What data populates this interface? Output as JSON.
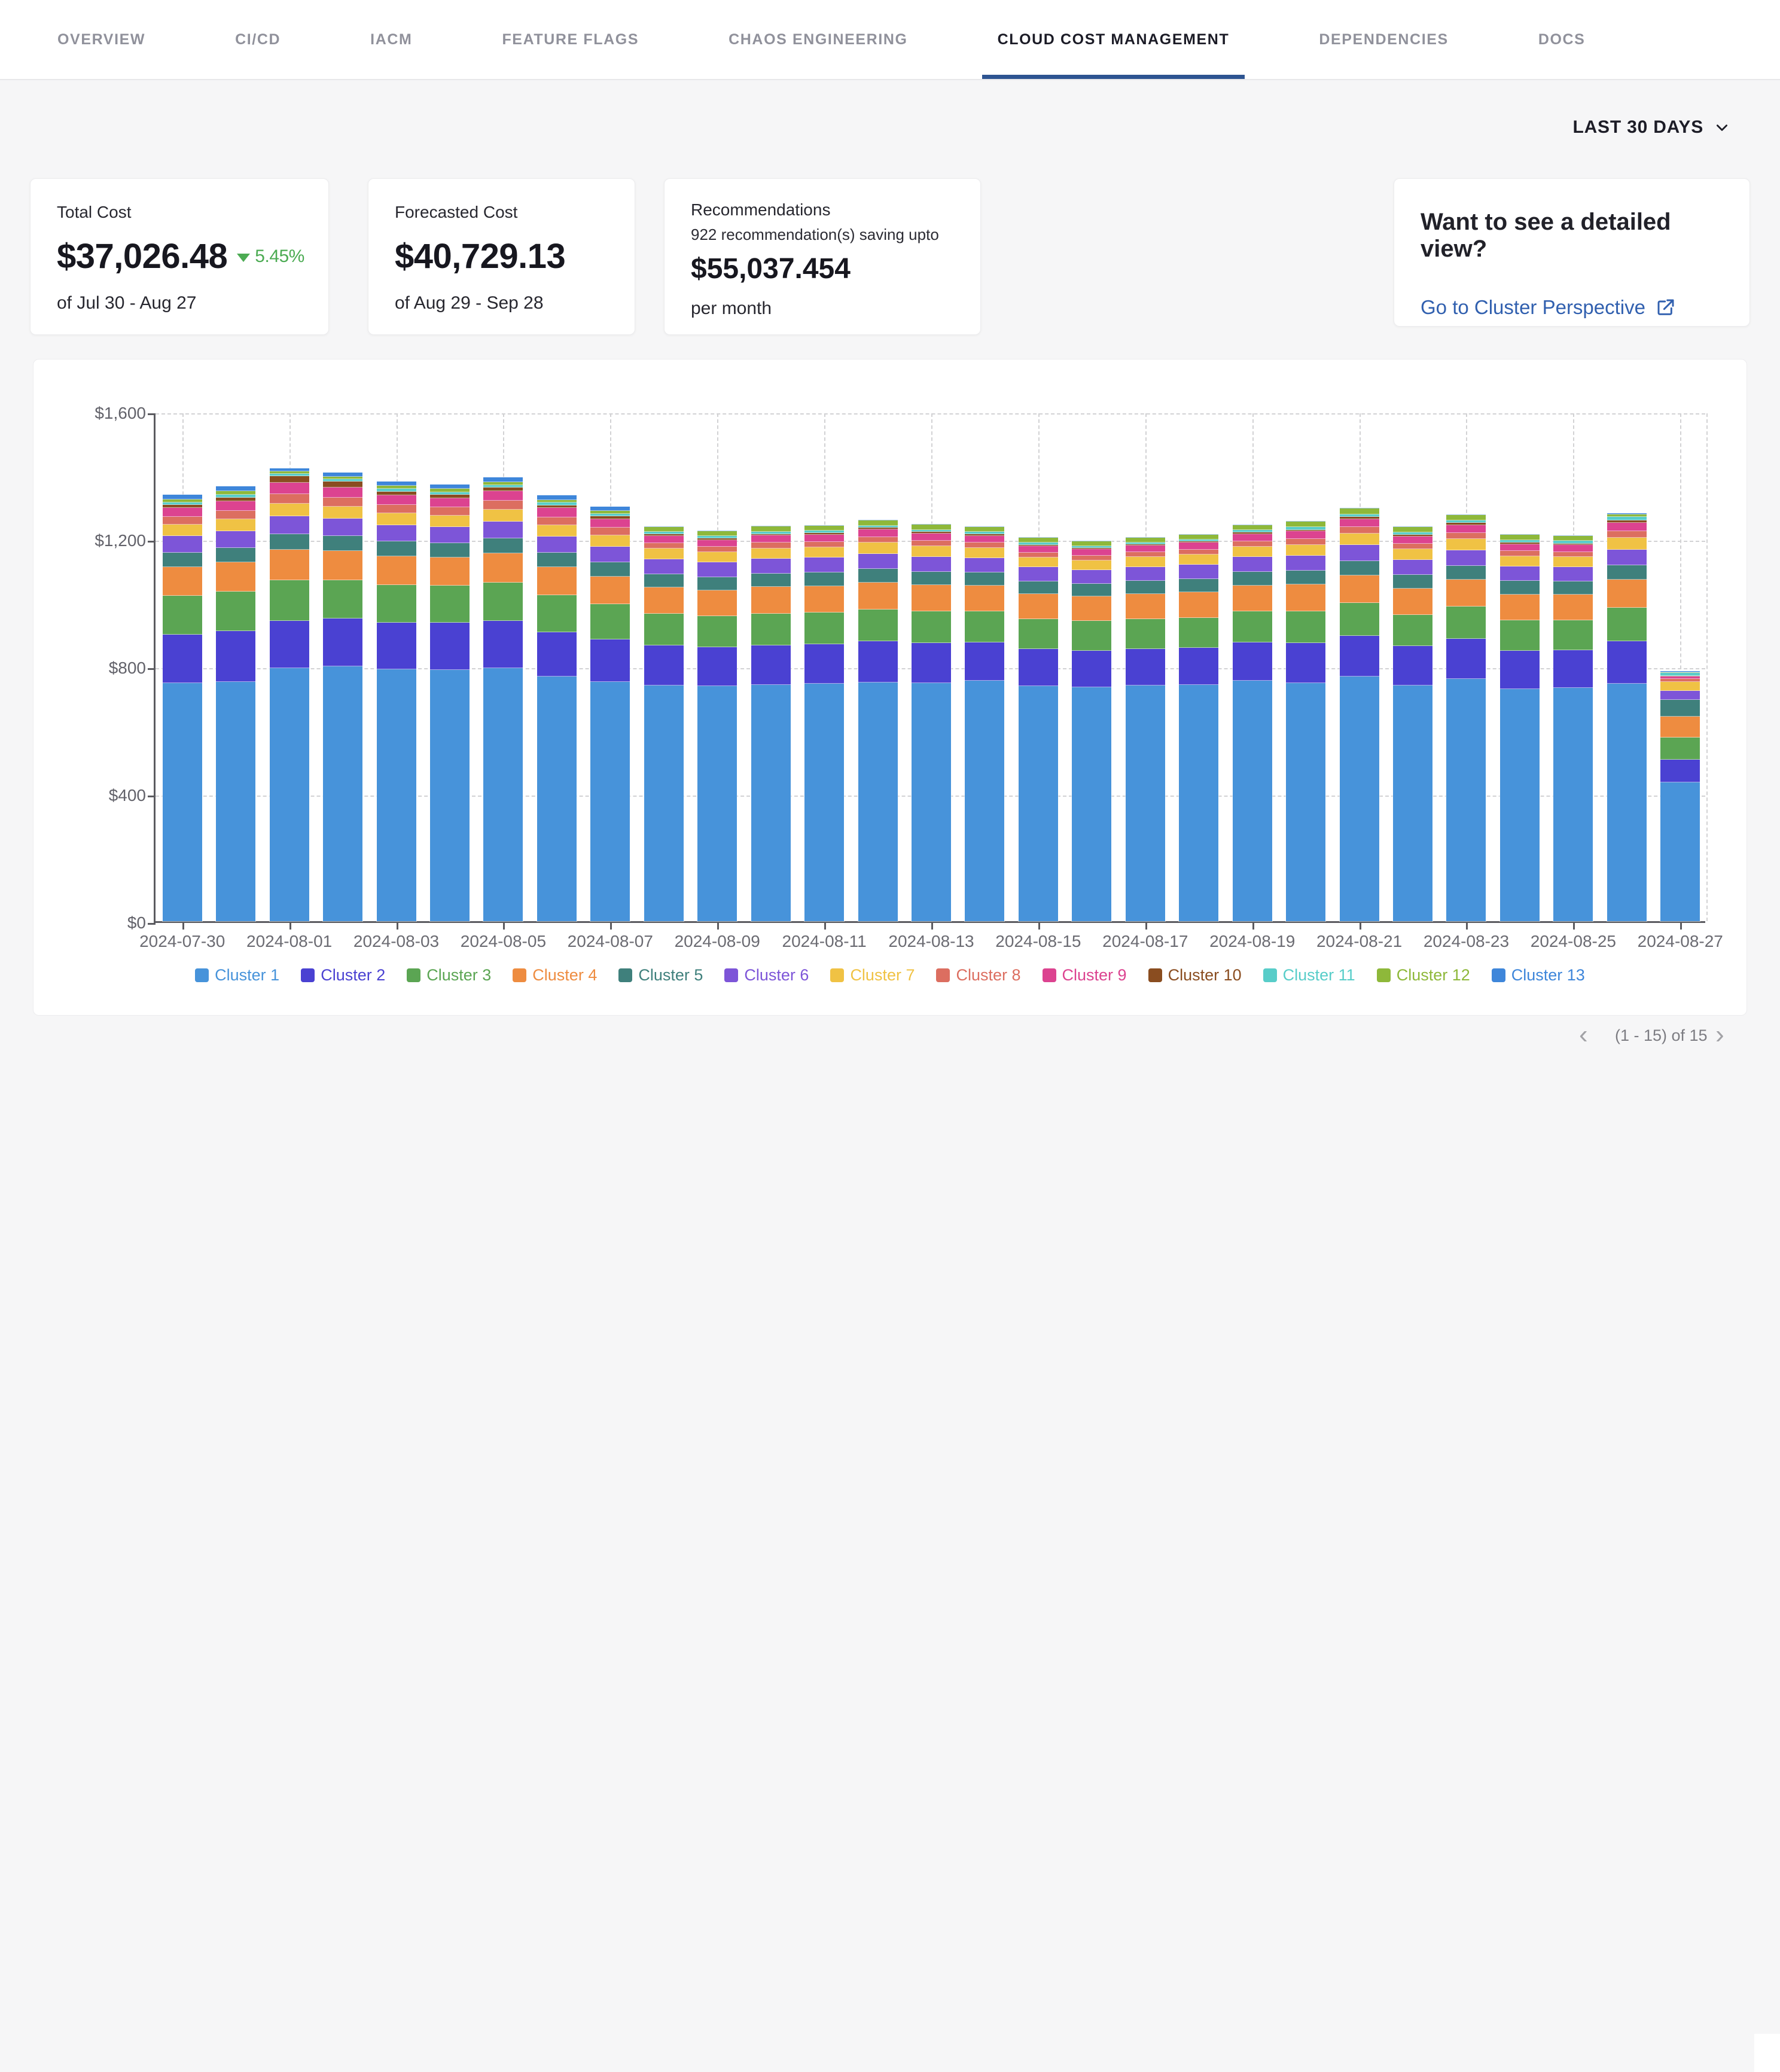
{
  "nav": {
    "tabs": [
      {
        "label": "OVERVIEW",
        "active": false
      },
      {
        "label": "CI/CD",
        "active": false
      },
      {
        "label": "IACM",
        "active": false
      },
      {
        "label": "FEATURE FLAGS",
        "active": false
      },
      {
        "label": "CHAOS ENGINEERING",
        "active": false
      },
      {
        "label": "CLOUD COST MANAGEMENT",
        "active": true
      },
      {
        "label": "DEPENDENCIES",
        "active": false
      },
      {
        "label": "DOCS",
        "active": false
      }
    ]
  },
  "toolbar": {
    "time_range": "LAST 30 DAYS"
  },
  "cards": {
    "total_cost": {
      "label": "Total Cost",
      "value": "$37,026.48",
      "delta": "5.45%",
      "delta_direction": "down",
      "delta_color": "#4cab53",
      "period": "of Jul 30 - Aug 27"
    },
    "forecasted_cost": {
      "label": "Forecasted Cost",
      "value": "$40,729.13",
      "period": "of Aug 29 - Sep 28"
    },
    "recommendations": {
      "label": "Recommendations",
      "summary": "922 recommendation(s) saving upto",
      "value": "$55,037.454",
      "suffix": "per month"
    },
    "detail_view": {
      "title": "Want to see a detailed view?",
      "link_label": "Go to Cluster Perspective",
      "link_color": "#3160af"
    }
  },
  "chart_data": {
    "type": "bar",
    "stacked": true,
    "title": "",
    "xlabel": "",
    "ylabel": "",
    "ylim": [
      0,
      1600
    ],
    "grid": "dashed",
    "legend_position": "bottom",
    "y_ticks": [
      {
        "value": 0,
        "label": "$0"
      },
      {
        "value": 400,
        "label": "$400"
      },
      {
        "value": 800,
        "label": "$800"
      },
      {
        "value": 1200,
        "label": "$1,200"
      },
      {
        "value": 1600,
        "label": "$1,600"
      }
    ],
    "x_label_every": 2,
    "categories": [
      "2024-07-30",
      "2024-07-31",
      "2024-08-01",
      "2024-08-02",
      "2024-08-03",
      "2024-08-04",
      "2024-08-05",
      "2024-08-06",
      "2024-08-07",
      "2024-08-08",
      "2024-08-09",
      "2024-08-10",
      "2024-08-11",
      "2024-08-12",
      "2024-08-13",
      "2024-08-14",
      "2024-08-15",
      "2024-08-16",
      "2024-08-17",
      "2024-08-18",
      "2024-08-19",
      "2024-08-20",
      "2024-08-21",
      "2024-08-22",
      "2024-08-23",
      "2024-08-24",
      "2024-08-25",
      "2024-08-26",
      "2024-08-27"
    ],
    "series": [
      {
        "name": "Cluster 1",
        "color": "#4793da",
        "values": [
          748,
          752,
          795,
          800,
          790,
          788,
          795,
          768,
          752,
          740,
          738,
          742,
          745,
          750,
          748,
          755,
          738,
          735,
          740,
          742,
          755,
          748,
          768,
          740,
          760,
          728,
          732,
          745,
          435
        ]
      },
      {
        "name": "Cluster 2",
        "color": "#4a41d2",
        "values": [
          152,
          158,
          148,
          150,
          148,
          150,
          148,
          140,
          132,
          125,
          122,
          124,
          125,
          128,
          125,
          120,
          116,
          114,
          115,
          116,
          120,
          126,
          128,
          123,
          126,
          120,
          118,
          133,
          72
        ]
      },
      {
        "name": "Cluster 3",
        "color": "#5ba553",
        "values": [
          122,
          124,
          128,
          120,
          118,
          116,
          120,
          115,
          112,
          100,
          98,
          100,
          99,
          101,
          99,
          97,
          94,
          93,
          94,
          95,
          97,
          99,
          103,
          99,
          101,
          97,
          95,
          107,
          70
        ]
      },
      {
        "name": "Cluster 4",
        "color": "#ee8c40",
        "values": [
          90,
          92,
          95,
          92,
          90,
          88,
          92,
          88,
          86,
          83,
          81,
          83,
          83,
          84,
          83,
          81,
          79,
          78,
          79,
          80,
          82,
          84,
          87,
          83,
          85,
          81,
          80,
          87,
          65
        ]
      },
      {
        "name": "Cluster 5",
        "color": "#3f807c",
        "values": [
          45,
          46,
          50,
          48,
          46,
          45,
          47,
          45,
          44,
          42,
          41,
          42,
          42,
          43,
          42,
          41,
          40,
          39,
          40,
          41,
          42,
          43,
          45,
          43,
          44,
          42,
          41,
          45,
          52
        ]
      },
      {
        "name": "Cluster 6",
        "color": "#7d55d8",
        "values": [
          52,
          53,
          55,
          54,
          52,
          51,
          53,
          51,
          50,
          47,
          46,
          47,
          47,
          48,
          47,
          46,
          44,
          43,
          44,
          45,
          47,
          48,
          50,
          47,
          49,
          46,
          45,
          49,
          30
        ]
      },
      {
        "name": "Cluster 7",
        "color": "#f0c244",
        "values": [
          36,
          37,
          40,
          38,
          37,
          36,
          38,
          36,
          35,
          33,
          33,
          33,
          33,
          34,
          33,
          32,
          31,
          31,
          31,
          32,
          33,
          34,
          36,
          33,
          35,
          32,
          32,
          37,
          28
        ]
      },
      {
        "name": "Cluster 8",
        "color": "#dc6e60",
        "values": [
          24,
          26,
          30,
          28,
          26,
          25,
          27,
          25,
          24,
          17,
          16,
          17,
          17,
          18,
          17,
          16,
          15,
          15,
          15,
          16,
          17,
          18,
          20,
          17,
          19,
          16,
          16,
          21,
          8
        ]
      },
      {
        "name": "Cluster 9",
        "color": "#dc4390",
        "values": [
          28,
          30,
          35,
          32,
          30,
          29,
          31,
          29,
          28,
          23,
          22,
          23,
          23,
          24,
          23,
          22,
          21,
          20,
          21,
          21,
          23,
          24,
          26,
          23,
          25,
          22,
          22,
          27,
          8
        ]
      },
      {
        "name": "Cluster 10",
        "color": "#8a4d20",
        "values": [
          10,
          12,
          22,
          18,
          12,
          11,
          10,
          9,
          9,
          5,
          5,
          5,
          5,
          5,
          5,
          5,
          4,
          4,
          4,
          4,
          5,
          5,
          6,
          5,
          6,
          5,
          5,
          8,
          3
        ]
      },
      {
        "name": "Cluster 11",
        "color": "#58cdc9",
        "values": [
          8,
          9,
          6,
          7,
          8,
          8,
          8,
          8,
          8,
          7,
          7,
          7,
          7,
          7,
          7,
          7,
          6,
          6,
          6,
          6,
          7,
          8,
          9,
          8,
          9,
          8,
          8,
          10,
          8
        ]
      },
      {
        "name": "Cluster 12",
        "color": "#8eb83a",
        "values": [
          10,
          11,
          8,
          9,
          10,
          10,
          10,
          9,
          9,
          16,
          16,
          16,
          16,
          16,
          16,
          16,
          15,
          15,
          15,
          15,
          16,
          17,
          18,
          16,
          17,
          16,
          16,
          8,
          3
        ]
      },
      {
        "name": "Cluster 13",
        "color": "#3e86da",
        "values": [
          15,
          16,
          10,
          12,
          14,
          14,
          15,
          14,
          13,
          2,
          2,
          2,
          2,
          2,
          2,
          2,
          2,
          2,
          2,
          2,
          2,
          2,
          2,
          2,
          2,
          2,
          2,
          4,
          3
        ]
      }
    ]
  },
  "pagination": {
    "label": "(1 - 15) of 15",
    "prev": "‹",
    "next": "›"
  }
}
